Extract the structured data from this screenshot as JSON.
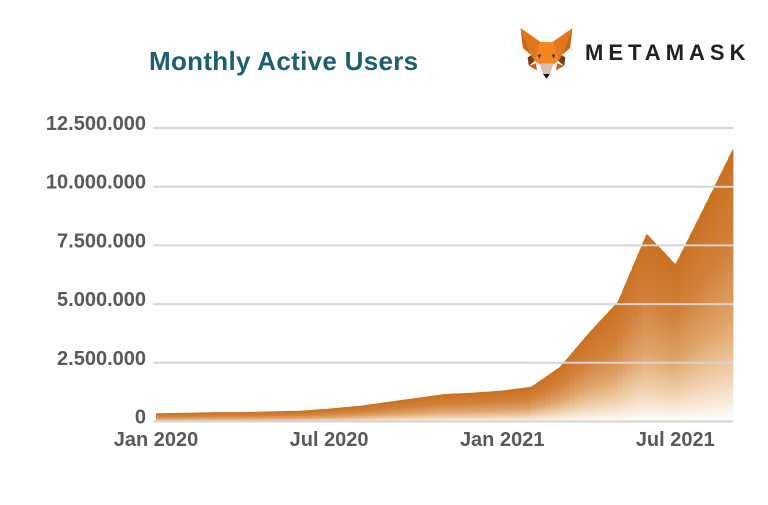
{
  "header": {
    "title": "Monthly Active Users",
    "title_color": "#1B5F71",
    "brand": "METAMASK",
    "brand_color": "#202124"
  },
  "chart_data": {
    "type": "area",
    "title": "Monthly Active Users",
    "x": [
      "Jan 2020",
      "Feb 2020",
      "Mar 2020",
      "Apr 2020",
      "May 2020",
      "Jun 2020",
      "Jul 2020",
      "Aug 2020",
      "Sep 2020",
      "Oct 2020",
      "Nov 2020",
      "Dec 2020",
      "Jan 2021",
      "Feb 2021",
      "Mar 2021",
      "Apr 2021",
      "May 2021",
      "Jun 2021",
      "Jul 2021",
      "Aug 2021",
      "Sep 2021"
    ],
    "values": [
      350000,
      370000,
      400000,
      400000,
      430000,
      460000,
      550000,
      660000,
      830000,
      1000000,
      1170000,
      1230000,
      1320000,
      1480000,
      2330000,
      3780000,
      5100000,
      8000000,
      6700000,
      9150000,
      11630000
    ],
    "ylim": [
      0,
      12500000
    ],
    "y_tick_values": [
      0,
      2500000,
      5000000,
      7500000,
      10000000,
      12500000
    ],
    "y_tick_labels": [
      "0",
      "2.500.000",
      "5.000.000",
      "7.500.000",
      "10.000.000",
      "12.500.000"
    ],
    "x_tick_indices": [
      0,
      6,
      12,
      18
    ],
    "x_tick_labels": [
      "Jan 2020",
      "Jul 2020",
      "Jan 2021",
      "Jul 2021"
    ],
    "grid": "horizontal",
    "legend": "none",
    "colors": {
      "area_fade": [
        "#C9701F",
        "#D2803A",
        "#DFA368",
        "#F0D0AC",
        "#FFFFFF"
      ],
      "gridline": "#D4D4D4",
      "axis_label": "#58595B"
    }
  }
}
